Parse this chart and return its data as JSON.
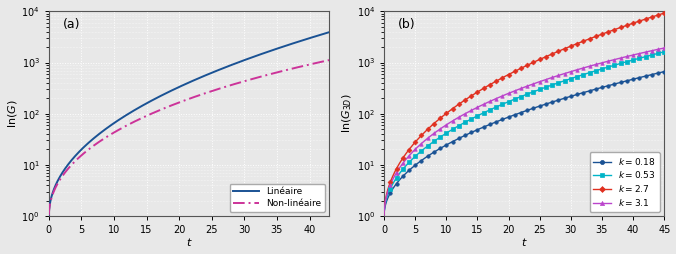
{
  "panel_a": {
    "label": "(a)",
    "ylabel": "ln(G)",
    "xlabel": "t",
    "xlim": [
      0,
      43
    ],
    "ylim_log": [
      1.0,
      10000.0
    ],
    "xticks": [
      0,
      5,
      10,
      15,
      20,
      25,
      30,
      35,
      40
    ],
    "linear_color": "#1a5294",
    "nonlinear_color": "#cc3399",
    "legend_labels": [
      "Linéaire",
      "Non-linéaire"
    ]
  },
  "panel_b": {
    "label": "(b)",
    "ylabel": "ln(G_{3D})",
    "xlabel": "t",
    "xlim": [
      0,
      45
    ],
    "ylim_log": [
      1.0,
      10000.0
    ],
    "xticks": [
      0,
      5,
      10,
      15,
      20,
      25,
      30,
      35,
      40,
      45
    ],
    "colors": [
      "#1a5294",
      "#00b4c8",
      "#e03020",
      "#bb44cc"
    ],
    "legend_labels": [
      "k = 0.18",
      "k = 0.53",
      "k = 2.7",
      "k = 3.1"
    ]
  },
  "background_color": "#e8e8e8",
  "grid_color": "#ffffff",
  "tick_fontsize": 7,
  "label_fontsize": 8,
  "legend_fontsize": 6.5
}
